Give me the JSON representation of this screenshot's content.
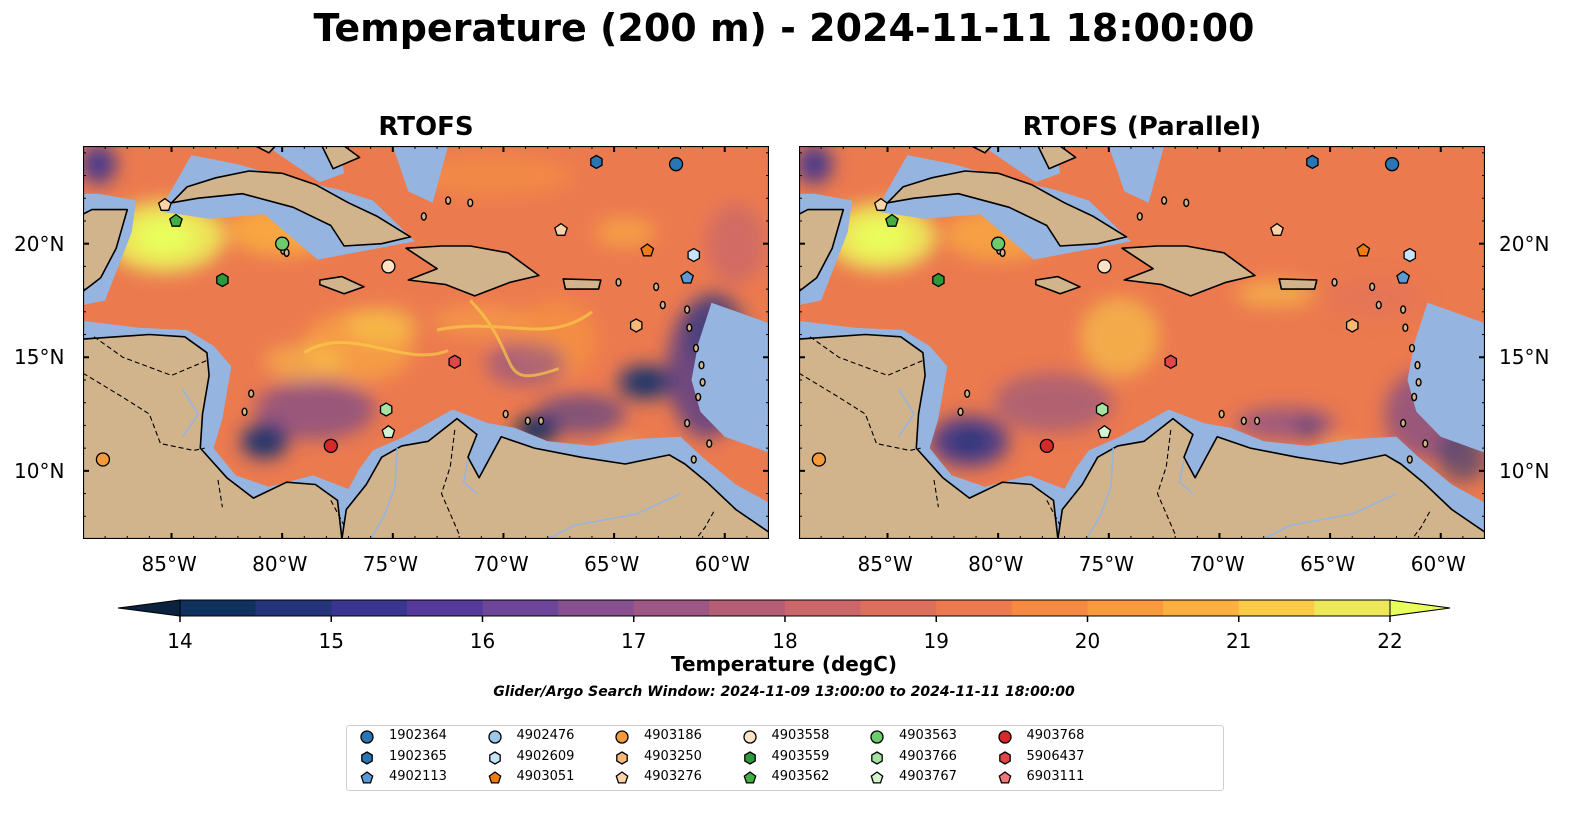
{
  "title": "Temperature (200 m) - 2024-11-11 18:00:00",
  "panels": [
    {
      "title": "RTOFS"
    },
    {
      "title": "RTOFS (Parallel)"
    }
  ],
  "lon_ticks": [
    "85°W",
    "80°W",
    "75°W",
    "70°W",
    "65°W",
    "60°W"
  ],
  "lat_ticks": [
    "20°N",
    "15°N",
    "10°N"
  ],
  "colorbar": {
    "label": "Temperature (degC)",
    "range": [
      14,
      22
    ],
    "ticks": [
      "14",
      "15",
      "16",
      "17",
      "18",
      "19",
      "20",
      "21",
      "22"
    ],
    "colors": [
      "#0a2240",
      "#10305e",
      "#24357a",
      "#3b3592",
      "#553a9c",
      "#6d4599",
      "#87508f",
      "#9e5784",
      "#b75e77",
      "#cb6769",
      "#dd705c",
      "#ec7a4f",
      "#f58a42",
      "#f99b3c",
      "#fbb040",
      "#f9cb48",
      "#ede85a",
      "#e8ff5c"
    ]
  },
  "search_window": "Glider/Argo Search Window: 2024-11-09 13:00:00 to 2024-11-11 18:00:00",
  "platforms": [
    {
      "id": "1902364",
      "marker": "circle",
      "color": "#2a75b3"
    },
    {
      "id": "1902365",
      "marker": "hexagon",
      "color": "#2a75b3"
    },
    {
      "id": "4902113",
      "marker": "pentagon",
      "color": "#5b9bd5"
    },
    {
      "id": "4902476",
      "marker": "circle",
      "color": "#9cc7e8"
    },
    {
      "id": "4902609",
      "marker": "hexagon",
      "color": "#c6e4f7"
    },
    {
      "id": "4903051",
      "marker": "pentagon",
      "color": "#f07b10"
    },
    {
      "id": "4903186",
      "marker": "circle",
      "color": "#f59a3a"
    },
    {
      "id": "4903250",
      "marker": "hexagon",
      "color": "#f8b878"
    },
    {
      "id": "4903276",
      "marker": "pentagon",
      "color": "#fbd3a8"
    },
    {
      "id": "4903558",
      "marker": "circle",
      "color": "#fde2c8"
    },
    {
      "id": "4903559",
      "marker": "hexagon",
      "color": "#2c9a38"
    },
    {
      "id": "4903562",
      "marker": "pentagon",
      "color": "#44ad44"
    },
    {
      "id": "4903563",
      "marker": "circle",
      "color": "#6ccb6c"
    },
    {
      "id": "4903766",
      "marker": "hexagon",
      "color": "#a6e2a0"
    },
    {
      "id": "4903767",
      "marker": "pentagon",
      "color": "#d4f5cc"
    },
    {
      "id": "4903768",
      "marker": "circle",
      "color": "#d42a2a"
    },
    {
      "id": "5906437",
      "marker": "hexagon",
      "color": "#e04848"
    },
    {
      "id": "6903111",
      "marker": "pentagon",
      "color": "#f07878"
    }
  ],
  "map_data": {
    "extent": {
      "lon": [
        -89,
        -58
      ],
      "lat": [
        7,
        24.3
      ]
    },
    "observations": [
      {
        "id": "1902364",
        "lon": -62.2,
        "lat": 23.5
      },
      {
        "id": "1902365",
        "lon": -65.8,
        "lat": 23.6
      },
      {
        "id": "4902113",
        "lon": -61.7,
        "lat": 18.5
      },
      {
        "id": "4902609",
        "lon": -61.4,
        "lat": 19.5
      },
      {
        "id": "4903051",
        "lon": -63.5,
        "lat": 19.7
      },
      {
        "id": "4903186",
        "lon": -88.1,
        "lat": 10.5
      },
      {
        "id": "4903250",
        "lon": -64.0,
        "lat": 16.4
      },
      {
        "id": "4903276",
        "lon": -67.4,
        "lat": 20.6
      },
      {
        "id": "4903276",
        "lon": -85.3,
        "lat": 21.7
      },
      {
        "id": "4903558",
        "lon": -75.2,
        "lat": 19.0
      },
      {
        "id": "4903559",
        "lon": -82.7,
        "lat": 18.4
      },
      {
        "id": "4903562",
        "lon": -84.8,
        "lat": 21.0
      },
      {
        "id": "4903563",
        "lon": -80.0,
        "lat": 20.0
      },
      {
        "id": "4903766",
        "lon": -75.3,
        "lat": 12.7
      },
      {
        "id": "4903767",
        "lon": -75.2,
        "lat": 11.7
      },
      {
        "id": "4903768",
        "lon": -77.8,
        "lat": 11.1
      },
      {
        "id": "5906437",
        "lon": -72.2,
        "lat": 14.8
      }
    ]
  }
}
